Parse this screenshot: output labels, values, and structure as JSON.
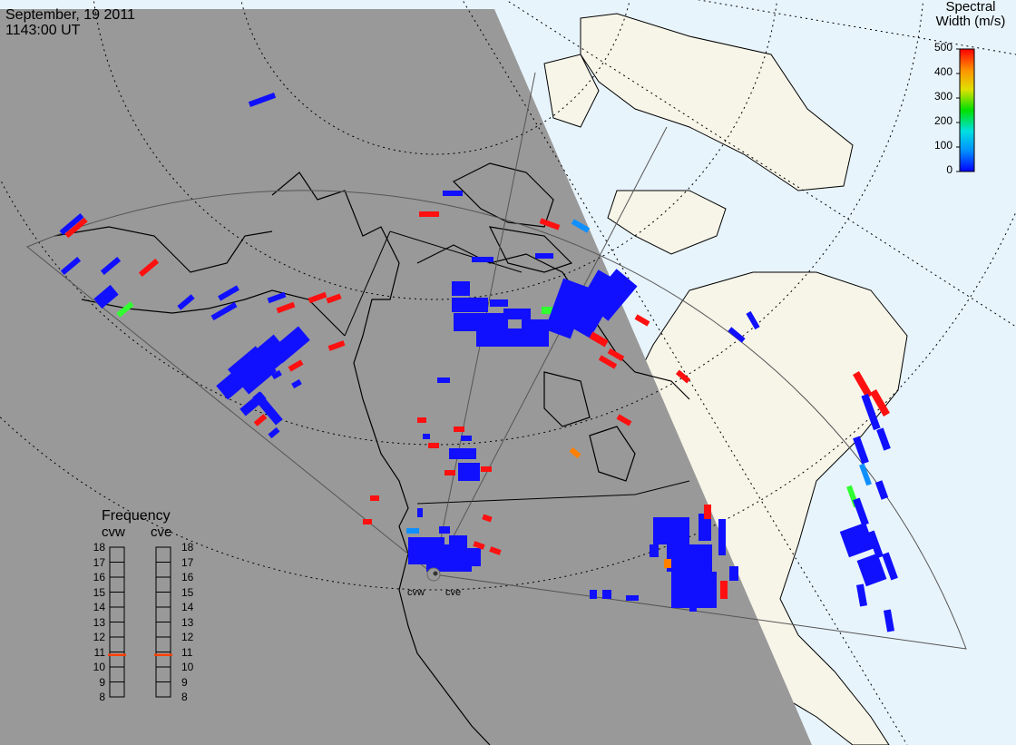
{
  "header": {
    "date": "September, 19 2011",
    "time": "1143:00 UT"
  },
  "colorbar": {
    "title_line1": "Spectral",
    "title_line2": "Width (m/s)",
    "ticks": [
      "500",
      "400",
      "300",
      "200",
      "100",
      "0"
    ],
    "min": 0,
    "max": 500,
    "colors": [
      "#0000ff",
      "#0090ff",
      "#00e0e0",
      "#00e000",
      "#e0e000",
      "#ff9000",
      "#ff0000"
    ]
  },
  "frequency_panel": {
    "title": "Frequency",
    "radars": [
      {
        "name": "cvw",
        "frequency_mhz": 10.8
      },
      {
        "name": "cve",
        "frequency_mhz": 10.8
      }
    ],
    "ticks": [
      "18",
      "17",
      "16",
      "15",
      "14",
      "13",
      "12",
      "11",
      "10",
      "9",
      "8"
    ],
    "min": 8,
    "max": 18,
    "marker_color": "#ff4000"
  },
  "sites": [
    {
      "name": "cvw"
    },
    {
      "name": "cve"
    }
  ],
  "colors": {
    "night": "#999999",
    "day_ocean": "#e8f4fc",
    "day_land": "#f7f5e8",
    "coast": "#000000"
  }
}
